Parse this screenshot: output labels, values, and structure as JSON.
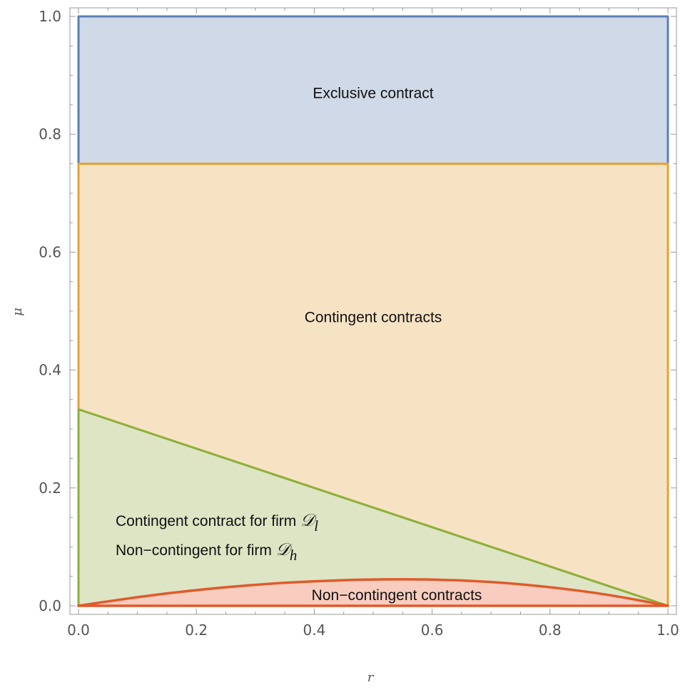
{
  "chart_data": {
    "type": "area",
    "xlabel": "r",
    "ylabel": "μ",
    "xlim": [
      0,
      1
    ],
    "ylim": [
      0,
      1
    ],
    "x_ticks": [
      "0.0",
      "0.2",
      "0.4",
      "0.6",
      "0.8",
      "1.0"
    ],
    "y_ticks": [
      "0.0",
      "0.2",
      "0.4",
      "0.6",
      "0.8",
      "1.0"
    ],
    "grid": false,
    "regions": [
      {
        "id": "exclusive",
        "label": "Exclusive contract",
        "fill": "#d0d9e8",
        "stroke": "#5b7fb6",
        "lower_boundary": {
          "x": [
            0,
            1
          ],
          "y": [
            0.75,
            0.75
          ]
        },
        "upper_boundary": {
          "x": [
            0,
            1
          ],
          "y": [
            1.0,
            1.0
          ]
        },
        "label_at": {
          "x": 0.5,
          "y": 0.87
        }
      },
      {
        "id": "contingent",
        "label": "Contingent contracts",
        "fill": "#f6e3c4",
        "stroke": "#e6a233",
        "lower_boundary": {
          "x": [
            0,
            1
          ],
          "y": [
            0.3333,
            0.0
          ]
        },
        "upper_boundary": {
          "x": [
            0,
            1
          ],
          "y": [
            0.75,
            0.75
          ]
        },
        "label_at": {
          "x": 0.5,
          "y": 0.49
        }
      },
      {
        "id": "mixed",
        "label_line1": "Contingent contract for firm",
        "label_line1_symbol": "𝒟",
        "label_line1_sub": "l",
        "label_line2": "Non−contingent for firm",
        "label_line2_symbol": "𝒟",
        "label_line2_sub": "h",
        "fill": "#dde5c5",
        "stroke": "#8daf3a",
        "upper_boundary": {
          "x": [
            0,
            1
          ],
          "y": [
            0.3333,
            0.0
          ]
        },
        "label_at": {
          "x": 0.0,
          "y": 0.125
        }
      },
      {
        "id": "non-contingent",
        "label": "Non−contingent contracts",
        "fill": "#f8cdbf",
        "stroke": "#e05a2b",
        "curve": {
          "x": [
            0,
            0.1,
            0.2,
            0.3,
            0.4,
            0.5,
            0.6,
            0.7,
            0.8,
            0.9,
            1.0
          ],
          "y": [
            0,
            0.015,
            0.027,
            0.036,
            0.042,
            0.045,
            0.045,
            0.041,
            0.032,
            0.019,
            0
          ]
        },
        "label_at": {
          "x": 0.54,
          "y": 0.018
        }
      }
    ]
  }
}
